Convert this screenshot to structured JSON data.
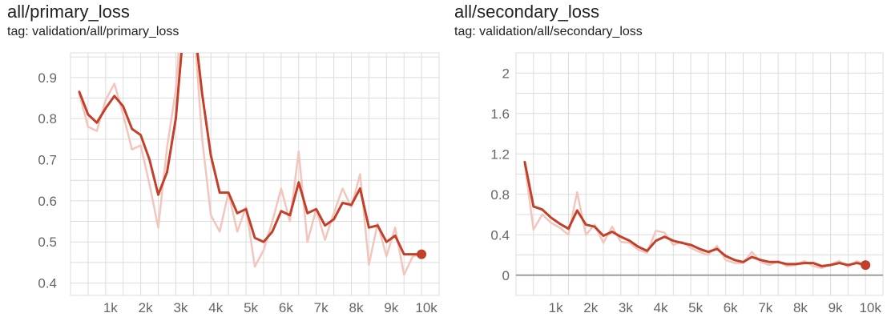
{
  "chart_data": [
    {
      "type": "line",
      "title": "all/primary_loss",
      "subtitle": "tag: validation/all/primary_loss",
      "xlim": [
        0,
        10500
      ],
      "ylim": [
        0.37,
        0.96
      ],
      "x_ticks": [
        1000,
        2000,
        3000,
        4000,
        5000,
        6000,
        7000,
        8000,
        9000,
        10000
      ],
      "x_tick_labels": [
        "1k",
        "2k",
        "3k",
        "4k",
        "5k",
        "6k",
        "7k",
        "8k",
        "9k",
        "10k"
      ],
      "y_ticks": [
        0.4,
        0.5,
        0.6,
        0.7,
        0.8,
        0.9
      ],
      "y_tick_labels": [
        "0.4",
        "0.5",
        "0.6",
        "0.7",
        "0.8",
        "0.9"
      ],
      "grid": true,
      "colors": {
        "smoothed": "#c2402a",
        "raw": "#f2c6bc"
      },
      "series": [
        {
          "role": "smoothed",
          "x": [
            250,
            500,
            750,
            1000,
            1250,
            1500,
            1750,
            2000,
            2250,
            2500,
            2750,
            3000,
            3250,
            3500,
            3750,
            4000,
            4250,
            4500,
            4750,
            5000,
            5250,
            5500,
            5750,
            6000,
            6250,
            6500,
            6750,
            7000,
            7250,
            7500,
            7750,
            8000,
            8250,
            8500,
            8750,
            9000,
            9250,
            9500,
            9750,
            10000
          ],
          "values": [
            0.865,
            0.81,
            0.79,
            0.825,
            0.855,
            0.83,
            0.775,
            0.76,
            0.7,
            0.615,
            0.67,
            0.8,
            1.05,
            1.05,
            0.86,
            0.71,
            0.62,
            0.62,
            0.57,
            0.58,
            0.51,
            0.5,
            0.525,
            0.575,
            0.565,
            0.645,
            0.57,
            0.58,
            0.54,
            0.555,
            0.595,
            0.59,
            0.63,
            0.535,
            0.54,
            0.5,
            0.515,
            0.47,
            0.47,
            0.47
          ]
        },
        {
          "role": "raw",
          "x": [
            250,
            500,
            750,
            1000,
            1250,
            1500,
            1750,
            2000,
            2250,
            2500,
            2750,
            3000,
            3250,
            3500,
            3750,
            4000,
            4250,
            4500,
            4750,
            5000,
            5250,
            5500,
            5750,
            6000,
            6250,
            6500,
            6750,
            7000,
            7250,
            7500,
            7750,
            8000,
            8250,
            8500,
            8750,
            9000,
            9250,
            9500,
            9750,
            10000
          ],
          "values": [
            0.86,
            0.78,
            0.77,
            0.845,
            0.885,
            0.81,
            0.725,
            0.735,
            0.64,
            0.535,
            0.73,
            0.87,
            1.15,
            1.05,
            0.75,
            0.565,
            0.525,
            0.62,
            0.525,
            0.585,
            0.44,
            0.48,
            0.55,
            0.63,
            0.55,
            0.72,
            0.5,
            0.58,
            0.505,
            0.57,
            0.63,
            0.585,
            0.665,
            0.445,
            0.545,
            0.465,
            0.535,
            0.42,
            0.465,
            0.47
          ]
        }
      ]
    },
    {
      "type": "line",
      "title": "all/secondary_loss",
      "subtitle": "tag: validation/all/secondary_loss",
      "xlim": [
        0,
        10500
      ],
      "ylim": [
        -0.2,
        2.2
      ],
      "x_ticks": [
        1000,
        2000,
        3000,
        4000,
        5000,
        6000,
        7000,
        8000,
        9000,
        10000
      ],
      "x_tick_labels": [
        "1k",
        "2k",
        "3k",
        "4k",
        "5k",
        "6k",
        "7k",
        "8k",
        "9k",
        "10k"
      ],
      "y_ticks": [
        0,
        0.4,
        0.8,
        1.2,
        1.6,
        2
      ],
      "y_tick_labels": [
        "0",
        "0.4",
        "0.8",
        "1.2",
        "1.6",
        "2"
      ],
      "zero_line": true,
      "grid": true,
      "colors": {
        "smoothed": "#c2402a",
        "raw": "#f2c6bc"
      },
      "series": [
        {
          "role": "smoothed",
          "x": [
            250,
            500,
            750,
            1000,
            1250,
            1500,
            1750,
            2000,
            2250,
            2500,
            2750,
            3000,
            3250,
            3500,
            3750,
            4000,
            4250,
            4500,
            4750,
            5000,
            5250,
            5500,
            5750,
            6000,
            6250,
            6500,
            6750,
            7000,
            7250,
            7500,
            7750,
            8000,
            8250,
            8500,
            8750,
            9000,
            9250,
            9500,
            9750,
            10000
          ],
          "values": [
            1.12,
            0.68,
            0.65,
            0.57,
            0.51,
            0.46,
            0.64,
            0.5,
            0.48,
            0.39,
            0.43,
            0.38,
            0.34,
            0.28,
            0.24,
            0.34,
            0.38,
            0.34,
            0.32,
            0.3,
            0.26,
            0.23,
            0.26,
            0.19,
            0.15,
            0.13,
            0.18,
            0.15,
            0.13,
            0.13,
            0.11,
            0.11,
            0.12,
            0.12,
            0.09,
            0.1,
            0.12,
            0.1,
            0.12,
            0.1
          ]
        },
        {
          "role": "raw",
          "x": [
            250,
            500,
            750,
            1000,
            1250,
            1500,
            1750,
            2000,
            2250,
            2500,
            2750,
            3000,
            3250,
            3500,
            3750,
            4000,
            4250,
            4500,
            4750,
            5000,
            5250,
            5500,
            5750,
            6000,
            6250,
            6500,
            6750,
            7000,
            7250,
            7500,
            7750,
            8000,
            8250,
            8500,
            8750,
            9000,
            9250,
            9500,
            9750,
            10000
          ],
          "values": [
            1.1,
            0.45,
            0.6,
            0.52,
            0.47,
            0.4,
            0.82,
            0.4,
            0.5,
            0.32,
            0.48,
            0.33,
            0.32,
            0.25,
            0.22,
            0.44,
            0.42,
            0.3,
            0.33,
            0.27,
            0.23,
            0.2,
            0.29,
            0.15,
            0.12,
            0.12,
            0.23,
            0.13,
            0.1,
            0.14,
            0.09,
            0.1,
            0.14,
            0.09,
            0.07,
            0.11,
            0.14,
            0.08,
            0.14,
            0.1
          ]
        }
      ]
    }
  ]
}
